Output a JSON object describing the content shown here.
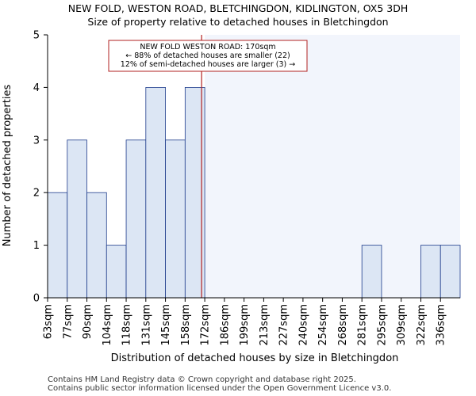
{
  "chart_data": {
    "type": "bar",
    "title": "NEW FOLD, WESTON ROAD, BLETCHINGDON, KIDLINGTON, OX5 3DH",
    "subtitle": "Size of property relative to detached houses in Bletchingdon",
    "xlabel": "Distribution of detached houses by size in Bletchingdon",
    "ylabel": "Number of detached properties",
    "categories": [
      "63sqm",
      "77sqm",
      "90sqm",
      "104sqm",
      "118sqm",
      "131sqm",
      "145sqm",
      "158sqm",
      "172sqm",
      "186sqm",
      "199sqm",
      "213sqm",
      "227sqm",
      "240sqm",
      "254sqm",
      "268sqm",
      "281sqm",
      "295sqm",
      "309sqm",
      "322sqm",
      "336sqm"
    ],
    "values": [
      2,
      3,
      2,
      1,
      3,
      4,
      3,
      4,
      0,
      0,
      0,
      0,
      0,
      0,
      0,
      0,
      1,
      0,
      0,
      1,
      1
    ],
    "yticks": [
      0,
      1,
      2,
      3,
      4,
      5
    ],
    "ylim": [
      0,
      5
    ],
    "property_value_sqm": 170,
    "highlight_start_category_index": 8,
    "annotation": {
      "line1": "NEW FOLD WESTON ROAD: 170sqm",
      "line2": "← 88% of detached houses are smaller (22)",
      "line3": "12% of semi-detached houses are larger (3) →"
    },
    "colors": {
      "bar_fill": "#dce6f4",
      "bar_stroke": "#1f3d8c",
      "highlight_bg": "#f2f5fc",
      "marker_line": "#b22222",
      "annotation_border": "#b22222"
    }
  },
  "footer": {
    "line1": "Contains HM Land Registry data © Crown copyright and database right 2025.",
    "line2": "Contains public sector information licensed under the Open Government Licence v3.0."
  }
}
